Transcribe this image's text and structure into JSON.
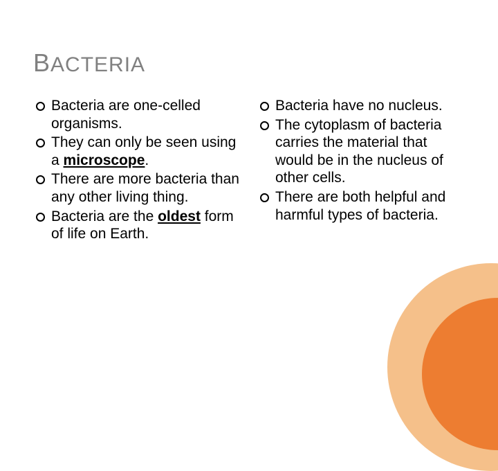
{
  "title": {
    "cap": "B",
    "rest": "ACTERIA"
  },
  "columns": {
    "left": [
      {
        "pre": "Bacteria are one-celled organisms.",
        "emph": "",
        "post": ""
      },
      {
        "pre": "They can only be seen using a ",
        "emph": "microscope",
        "post": "."
      },
      {
        "pre": "There are more bacteria than any other living thing.",
        "emph": "",
        "post": ""
      },
      {
        "pre": "Bacteria are the ",
        "emph": "oldest",
        "post": " form of life on Earth."
      }
    ],
    "right": [
      {
        "pre": "Bacteria have no nucleus.",
        "emph": "",
        "post": ""
      },
      {
        "pre": "The cytoplasm of bacteria carries the material that would be in the nucleus of other cells.",
        "emph": "",
        "post": ""
      },
      {
        "pre": "There are both helpful and harmful types of bacteria.",
        "emph": "",
        "post": ""
      }
    ]
  },
  "style": {
    "title_color": "#808080",
    "title_font_size": 30,
    "title_cap_font_size": 36,
    "body_font_size": 21,
    "body_color": "#000000",
    "bullet_marker": "hollow-circle",
    "bullet_border_color": "#000000",
    "background_color": "#ffffff",
    "accent_outer_circle_color": "#f5c08a",
    "accent_inner_circle_color": "#ed7d31",
    "slide_width": 720,
    "slide_height": 540,
    "layout": "two-column-bullets"
  }
}
